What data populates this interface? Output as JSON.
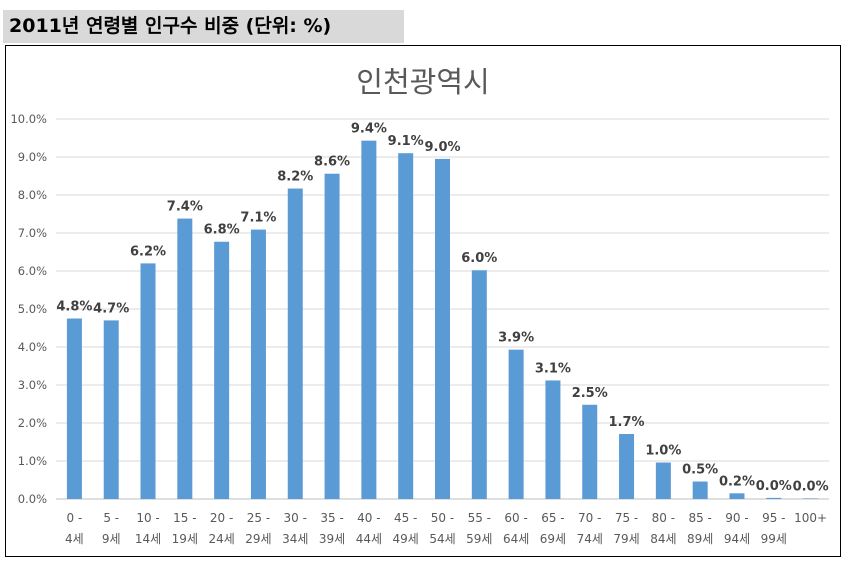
{
  "header": {
    "title": "2011년 연령별 인구수 비중 (단위: %)"
  },
  "chart_data": {
    "type": "bar",
    "title": "인천광역시",
    "xlabel": "",
    "ylabel": "",
    "ylim": [
      0,
      10
    ],
    "yticks": [
      "0.0%",
      "1.0%",
      "2.0%",
      "3.0%",
      "4.0%",
      "5.0%",
      "6.0%",
      "7.0%",
      "8.0%",
      "9.0%",
      "10.0%"
    ],
    "grid": true,
    "legend": "none",
    "color": "#5b9bd5",
    "categories": [
      [
        "0 -",
        "4세"
      ],
      [
        "5 -",
        "9세"
      ],
      [
        "10 -",
        "14세"
      ],
      [
        "15 -",
        "19세"
      ],
      [
        "20 -",
        "24세"
      ],
      [
        "25 -",
        "29세"
      ],
      [
        "30 -",
        "34세"
      ],
      [
        "35 -",
        "39세"
      ],
      [
        "40 -",
        "44세"
      ],
      [
        "45 -",
        "49세"
      ],
      [
        "50 -",
        "54세"
      ],
      [
        "55 -",
        "59세"
      ],
      [
        "60 -",
        "64세"
      ],
      [
        "65 -",
        "69세"
      ],
      [
        "70 -",
        "74세"
      ],
      [
        "75 -",
        "79세"
      ],
      [
        "80 -",
        "84세"
      ],
      [
        "85 -",
        "89세"
      ],
      [
        "90 -",
        "94세"
      ],
      [
        "95 -",
        "99세"
      ],
      [
        "100+"
      ]
    ],
    "values": [
      4.75,
      4.7,
      6.2,
      7.38,
      6.77,
      7.09,
      8.17,
      8.56,
      9.43,
      9.1,
      8.95,
      6.02,
      3.93,
      3.12,
      2.48,
      1.71,
      0.96,
      0.46,
      0.15,
      0.03,
      0.005
    ],
    "data_labels": [
      "4.8%",
      "4.7%",
      "6.2%",
      "7.4%",
      "6.8%",
      "7.1%",
      "8.2%",
      "8.6%",
      "9.4%",
      "9.1%",
      "9.0%",
      "6.0%",
      "3.9%",
      "3.1%",
      "2.5%",
      "1.7%",
      "1.0%",
      "0.5%",
      "0.2%",
      "0.0%",
      "0.0%"
    ]
  }
}
